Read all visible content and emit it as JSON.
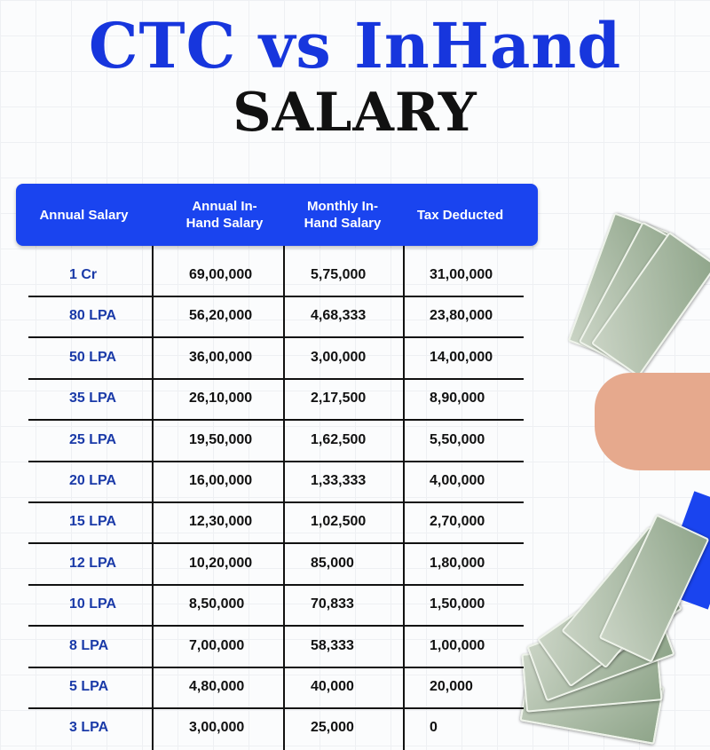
{
  "title": {
    "line1": "CTC vs InHand",
    "line2": "SALARY"
  },
  "colors": {
    "header_bg": "#1a44ef",
    "title_blue": "#1736dd",
    "first_col_text": "#1a3aa8"
  },
  "table": {
    "headers": [
      "Annual Salary",
      "Annual In-Hand Salary",
      "Monthly In-Hand Salary",
      "Tax Deducted"
    ],
    "rows": [
      [
        "1 Cr",
        "69,00,000",
        "5,75,000",
        "31,00,000"
      ],
      [
        "80 LPA",
        "56,20,000",
        "4,68,333",
        "23,80,000"
      ],
      [
        "50 LPA",
        "36,00,000",
        "3,00,000",
        "14,00,000"
      ],
      [
        "35 LPA",
        "26,10,000",
        "2,17,500",
        "8,90,000"
      ],
      [
        "25 LPA",
        "19,50,000",
        "1,62,500",
        "5,50,000"
      ],
      [
        "20 LPA",
        "16,00,000",
        "1,33,333",
        "4,00,000"
      ],
      [
        "15 LPA",
        "12,30,000",
        "1,02,500",
        "2,70,000"
      ],
      [
        "12 LPA",
        "10,20,000",
        "85,000",
        "1,80,000"
      ],
      [
        "10 LPA",
        "8,50,000",
        "70,833",
        "1,50,000"
      ],
      [
        "8 LPA",
        "7,00,000",
        "58,333",
        "1,00,000"
      ],
      [
        "5 LPA",
        "4,80,000",
        "40,000",
        "20,000"
      ],
      [
        "3 LPA",
        "3,00,000",
        "25,000",
        "0"
      ]
    ]
  },
  "images": [
    "cash-in-hand-icon",
    "fanned-dollar-bills-icon"
  ]
}
